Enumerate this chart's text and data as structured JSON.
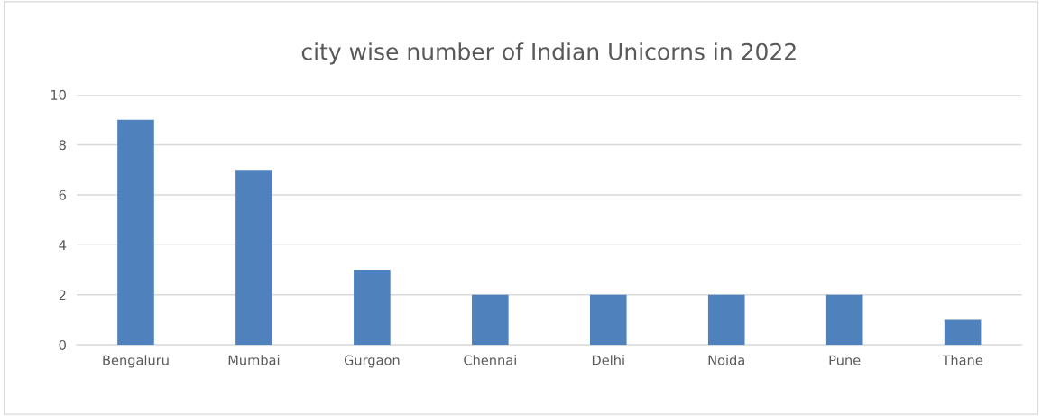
{
  "chart_data": {
    "type": "bar",
    "title": "city wise number of Indian Unicorns in 2022",
    "categories": [
      "Bengaluru",
      "Mumbai",
      "Gurgaon",
      "Chennai",
      "Delhi",
      "Noida",
      "Pune",
      "Thane"
    ],
    "values": [
      9,
      7,
      3,
      2,
      2,
      2,
      2,
      1
    ],
    "color": "#4f81bd",
    "ylim": [
      0,
      10
    ],
    "yticks": [
      0,
      2,
      4,
      6,
      8,
      10
    ],
    "grid": "y",
    "legend": false
  }
}
